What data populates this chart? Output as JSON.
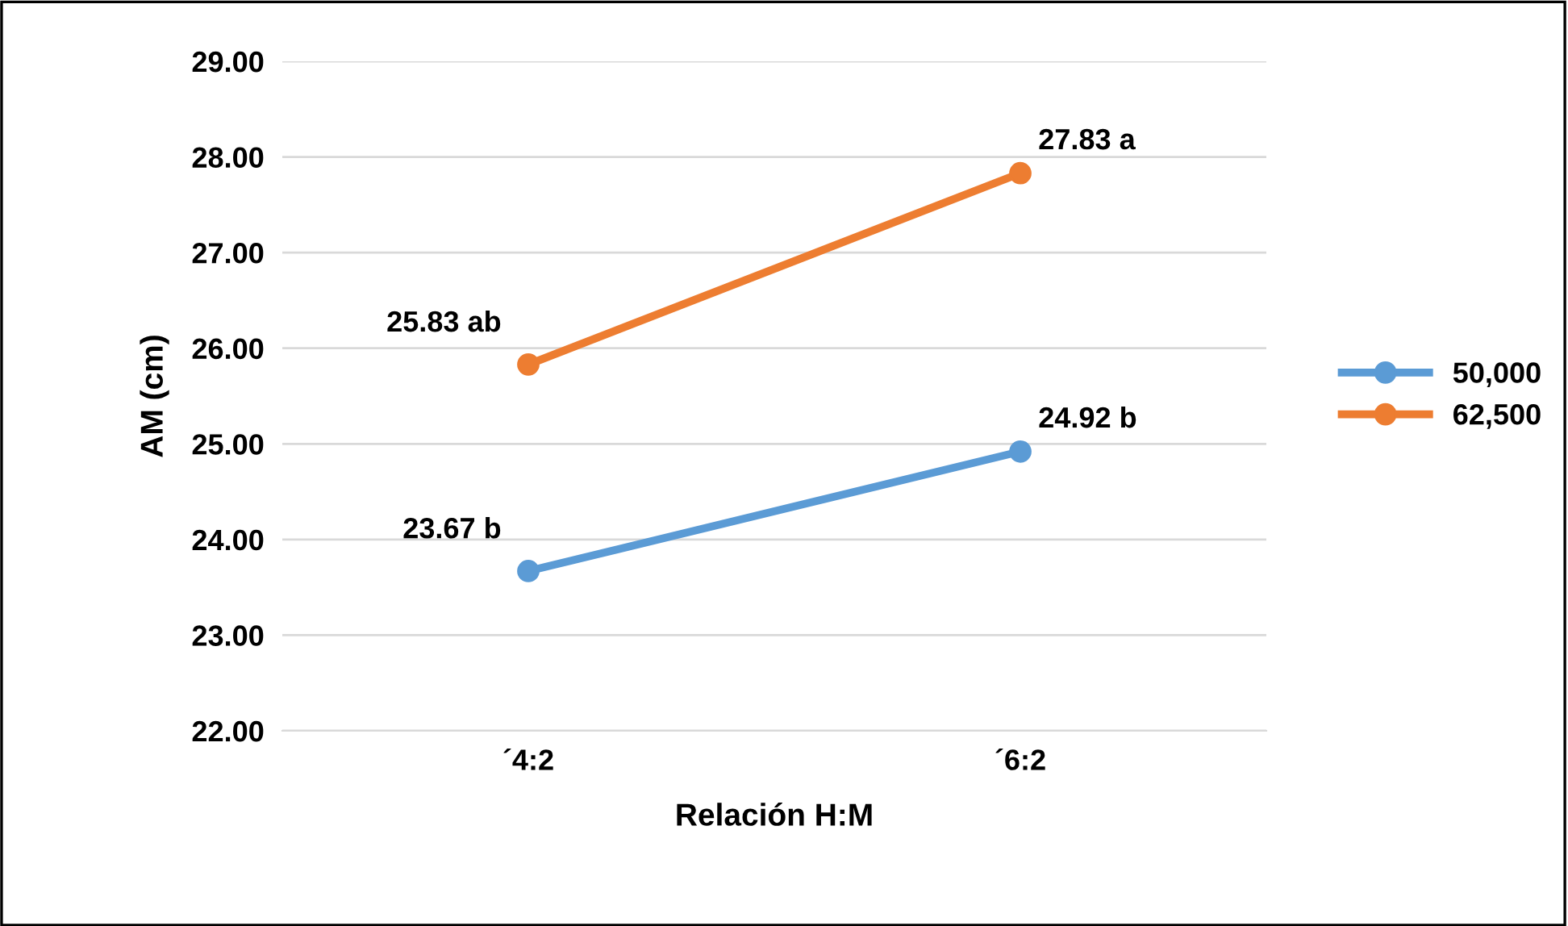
{
  "chart_data": {
    "type": "line",
    "xlabel": "Relación H:M",
    "ylabel": "AM (cm)",
    "categories": [
      "´4:2",
      "´6:2"
    ],
    "series": [
      {
        "name": "50,000",
        "color": "#5b9bd5",
        "values": [
          23.67,
          24.92
        ],
        "value_labels": [
          "23.67 b",
          "24.92 b"
        ]
      },
      {
        "name": "62,500",
        "color": "#ed7d31",
        "values": [
          25.83,
          27.83
        ],
        "value_labels": [
          "25.83 ab",
          "27.83 a"
        ]
      }
    ],
    "ylim": [
      22,
      29
    ],
    "yticks": [
      {
        "value": 22,
        "label": "22.00"
      },
      {
        "value": 23,
        "label": "23.00"
      },
      {
        "value": 24,
        "label": "24.00"
      },
      {
        "value": 25,
        "label": "25.00"
      },
      {
        "value": 26,
        "label": "26.00"
      },
      {
        "value": 27,
        "label": "27.00"
      },
      {
        "value": 28,
        "label": "28.00"
      },
      {
        "value": 29,
        "label": "29.00"
      }
    ],
    "grid": "y",
    "legend": "right",
    "marker": "circle",
    "line_style": "solid"
  }
}
